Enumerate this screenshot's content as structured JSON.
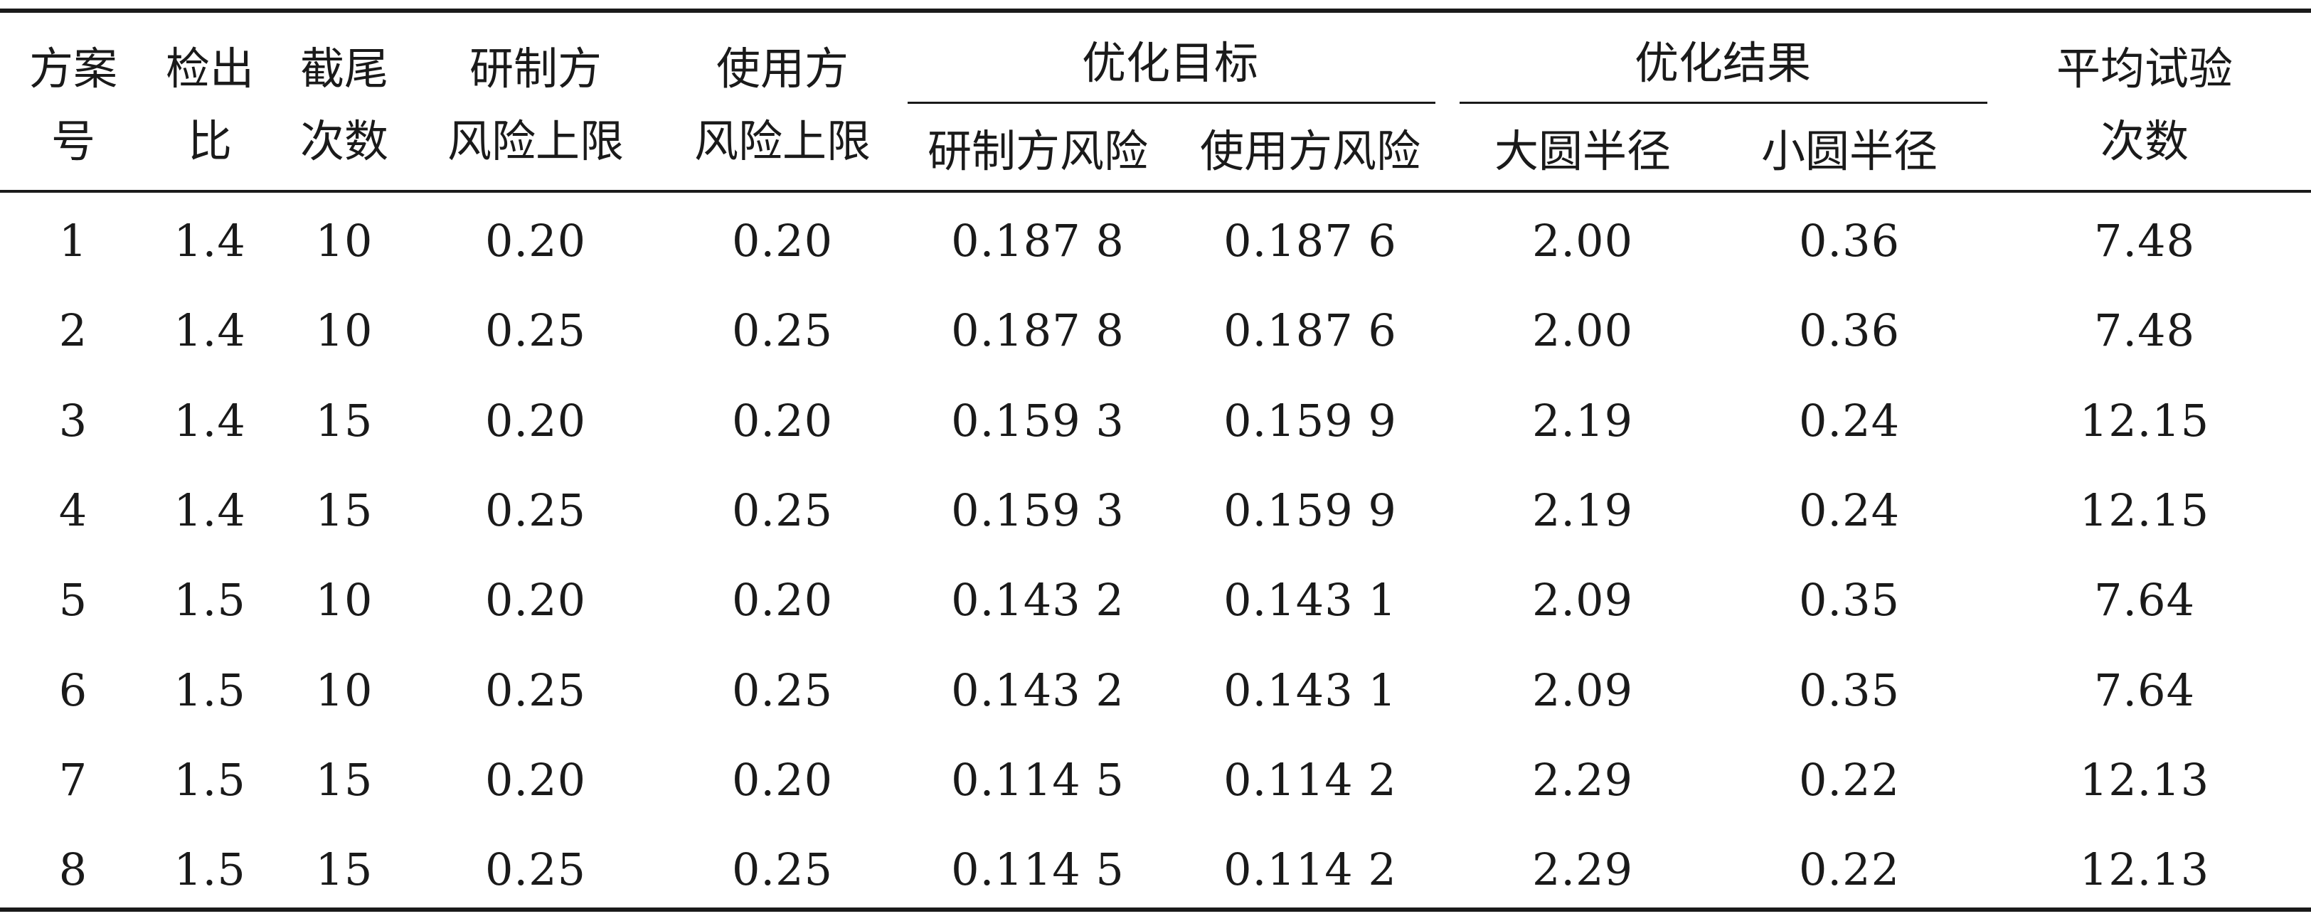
{
  "table": {
    "headers": {
      "plan_no": [
        "方案",
        "号"
      ],
      "detect_ratio": [
        "检出",
        "比"
      ],
      "trunc_count": [
        "截尾",
        "次数"
      ],
      "producer_risk_limit": [
        "研制方",
        "风险上限"
      ],
      "consumer_risk_limit": [
        "使用方",
        "风险上限"
      ],
      "opt_target": {
        "label": "优化目标",
        "sub": [
          "研制方风险",
          "使用方风险"
        ]
      },
      "opt_result": {
        "label": "优化结果",
        "sub": [
          "大圆半径",
          "小圆半径"
        ]
      },
      "avg_trials": [
        "平均试验",
        "次数"
      ]
    },
    "rows": [
      [
        "1",
        "1.4",
        "10",
        "0.20",
        "0.20",
        "0.187 8",
        "0.187 6",
        "2.00",
        "0.36",
        "7.48"
      ],
      [
        "2",
        "1.4",
        "10",
        "0.25",
        "0.25",
        "0.187 8",
        "0.187 6",
        "2.00",
        "0.36",
        "7.48"
      ],
      [
        "3",
        "1.4",
        "15",
        "0.20",
        "0.20",
        "0.159 3",
        "0.159 9",
        "2.19",
        "0.24",
        "12.15"
      ],
      [
        "4",
        "1.4",
        "15",
        "0.25",
        "0.25",
        "0.159 3",
        "0.159 9",
        "2.19",
        "0.24",
        "12.15"
      ],
      [
        "5",
        "1.5",
        "10",
        "0.20",
        "0.20",
        "0.143 2",
        "0.143 1",
        "2.09",
        "0.35",
        "7.64"
      ],
      [
        "6",
        "1.5",
        "10",
        "0.25",
        "0.25",
        "0.143 2",
        "0.143 1",
        "2.09",
        "0.35",
        "7.64"
      ],
      [
        "7",
        "1.5",
        "15",
        "0.20",
        "0.20",
        "0.114 5",
        "0.114 2",
        "2.29",
        "0.22",
        "12.13"
      ],
      [
        "8",
        "1.5",
        "15",
        "0.25",
        "0.25",
        "0.114 5",
        "0.114 2",
        "2.29",
        "0.22",
        "12.13"
      ]
    ]
  }
}
